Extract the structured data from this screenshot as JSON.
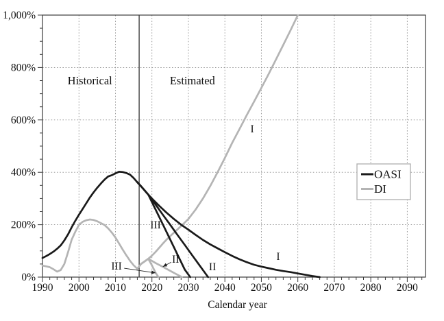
{
  "figure": {
    "region_labels": {
      "historical": "Historical",
      "estimated": "Estimated"
    },
    "x_axis_title": "Calendar year",
    "legend": {
      "position": "right-middle",
      "items": [
        {
          "label": "OASI",
          "color": "#1a1a1a"
        },
        {
          "label": "DI",
          "color": "#b4b4b4"
        }
      ]
    }
  },
  "colors": {
    "oasi": "#1a1a1a",
    "di": "#b4b4b4",
    "grid": "#8f8f8f",
    "axis": "#3a3a3a",
    "divider": "#222222",
    "background": "#ffffff"
  },
  "chart_data": {
    "type": "line",
    "title": "",
    "xlabel": "Calendar year",
    "ylabel": "",
    "x_range": [
      1990,
      2095
    ],
    "y_range_percent": [
      0,
      1000
    ],
    "x_ticks_major": [
      1990,
      2000,
      2010,
      2020,
      2030,
      2040,
      2050,
      2060,
      2070,
      2080,
      2090
    ],
    "x_tick_minor_step_years": 2,
    "y_ticks_major_percent": [
      0,
      200,
      400,
      600,
      800,
      1000
    ],
    "y_tick_labels": [
      "0%",
      "200%",
      "400%",
      "600%",
      "800%",
      "1,000%"
    ],
    "y_tick_minor_step_percent": 50,
    "grid": "dotted",
    "legend_position": "right-middle",
    "historical_estimated_divider_year": 2016.5,
    "series": [
      {
        "name": "DI historical",
        "group": "DI",
        "color": "#b4b4b4",
        "points": [
          [
            1990,
            44
          ],
          [
            1991,
            41
          ],
          [
            1992,
            38
          ],
          [
            1993,
            30
          ],
          [
            1994,
            21
          ],
          [
            1995,
            27
          ],
          [
            1996,
            50
          ],
          [
            1997,
            95
          ],
          [
            1998,
            143
          ],
          [
            1999,
            173
          ],
          [
            2000,
            199
          ],
          [
            2001,
            211
          ],
          [
            2002,
            217
          ],
          [
            2003,
            220
          ],
          [
            2004,
            218
          ],
          [
            2005,
            213
          ],
          [
            2006,
            206
          ],
          [
            2007,
            199
          ],
          [
            2008,
            186
          ],
          [
            2009,
            170
          ],
          [
            2010,
            151
          ],
          [
            2011,
            128
          ],
          [
            2012,
            105
          ],
          [
            2013,
            83
          ],
          [
            2014,
            62
          ],
          [
            2015,
            45
          ],
          [
            2016,
            32
          ]
        ]
      },
      {
        "name": "DI alternative I",
        "group": "DI",
        "color": "#b4b4b4",
        "points": [
          [
            2016,
            32
          ],
          [
            2017,
            50
          ],
          [
            2018,
            60
          ],
          [
            2019,
            70
          ],
          [
            2020,
            82
          ],
          [
            2021,
            96
          ],
          [
            2022,
            112
          ],
          [
            2023,
            128
          ],
          [
            2024,
            143
          ],
          [
            2025,
            156
          ],
          [
            2026,
            169
          ],
          [
            2027,
            182
          ],
          [
            2028,
            195
          ],
          [
            2029,
            208
          ],
          [
            2030,
            222
          ],
          [
            2031,
            240
          ],
          [
            2032,
            258
          ],
          [
            2034,
            300
          ],
          [
            2036,
            348
          ],
          [
            2038,
            400
          ],
          [
            2040,
            455
          ],
          [
            2042,
            512
          ],
          [
            2044,
            565
          ],
          [
            2046,
            618
          ],
          [
            2048,
            670
          ],
          [
            2050,
            722
          ],
          [
            2052,
            775
          ],
          [
            2054,
            830
          ],
          [
            2056,
            886
          ],
          [
            2058,
            942
          ],
          [
            2060,
            1000
          ]
        ]
      },
      {
        "name": "DI alternative II",
        "group": "DI",
        "color": "#b4b4b4",
        "points": [
          [
            2016,
            32
          ],
          [
            2017,
            50
          ],
          [
            2018,
            60
          ],
          [
            2019,
            70
          ],
          [
            2021,
            54
          ],
          [
            2023,
            39
          ],
          [
            2025,
            24
          ],
          [
            2027,
            9
          ],
          [
            2028.2,
            0
          ]
        ]
      },
      {
        "name": "DI alternative III",
        "group": "DI",
        "color": "#b4b4b4",
        "points": [
          [
            2016,
            32
          ],
          [
            2017,
            50
          ],
          [
            2018,
            60
          ],
          [
            2019,
            70
          ],
          [
            2020,
            45
          ],
          [
            2021,
            17
          ],
          [
            2021.8,
            0
          ]
        ]
      },
      {
        "name": "OASI historical",
        "group": "OASI",
        "color": "#1a1a1a",
        "points": [
          [
            1990,
            73
          ],
          [
            1991,
            80
          ],
          [
            1992,
            88
          ],
          [
            1993,
            97
          ],
          [
            1994,
            108
          ],
          [
            1995,
            121
          ],
          [
            1996,
            140
          ],
          [
            1997,
            163
          ],
          [
            1998,
            190
          ],
          [
            1999,
            215
          ],
          [
            2000,
            238
          ],
          [
            2001,
            260
          ],
          [
            2002,
            282
          ],
          [
            2003,
            304
          ],
          [
            2004,
            323
          ],
          [
            2005,
            341
          ],
          [
            2006,
            357
          ],
          [
            2007,
            372
          ],
          [
            2008,
            384
          ],
          [
            2009,
            389
          ],
          [
            2010,
            396
          ],
          [
            2011,
            402
          ],
          [
            2012,
            401
          ],
          [
            2013,
            397
          ],
          [
            2014,
            391
          ],
          [
            2015,
            378
          ],
          [
            2016,
            362
          ]
        ]
      },
      {
        "name": "OASI alternative I",
        "group": "OASI",
        "color": "#1a1a1a",
        "points": [
          [
            2016,
            362
          ],
          [
            2017,
            347
          ],
          [
            2018,
            331
          ],
          [
            2019,
            315
          ],
          [
            2020,
            300
          ],
          [
            2022,
            272
          ],
          [
            2024,
            246
          ],
          [
            2026,
            222
          ],
          [
            2028,
            200
          ],
          [
            2030,
            181
          ],
          [
            2032,
            161
          ],
          [
            2034,
            142
          ],
          [
            2036,
            125
          ],
          [
            2038,
            110
          ],
          [
            2040,
            95
          ],
          [
            2042,
            81
          ],
          [
            2044,
            68
          ],
          [
            2046,
            57
          ],
          [
            2048,
            47
          ],
          [
            2050,
            40
          ],
          [
            2052,
            34
          ],
          [
            2054,
            28
          ],
          [
            2056,
            23
          ],
          [
            2058,
            19
          ],
          [
            2060,
            14
          ],
          [
            2062,
            9
          ],
          [
            2064,
            4
          ],
          [
            2066,
            0
          ]
        ]
      },
      {
        "name": "OASI alternative II",
        "group": "OASI",
        "color": "#1a1a1a",
        "points": [
          [
            2016,
            362
          ],
          [
            2017,
            347
          ],
          [
            2018,
            331
          ],
          [
            2019,
            315
          ],
          [
            2021,
            277
          ],
          [
            2023,
            238
          ],
          [
            2025,
            200
          ],
          [
            2027,
            161
          ],
          [
            2029,
            123
          ],
          [
            2031,
            84
          ],
          [
            2033,
            46
          ],
          [
            2035.4,
            0
          ]
        ]
      },
      {
        "name": "OASI alternative III",
        "group": "OASI",
        "color": "#1a1a1a",
        "points": [
          [
            2016,
            362
          ],
          [
            2017,
            347
          ],
          [
            2018,
            331
          ],
          [
            2019,
            315
          ],
          [
            2021,
            258
          ],
          [
            2023,
            201
          ],
          [
            2025,
            144
          ],
          [
            2027,
            86
          ],
          [
            2029,
            29
          ],
          [
            2030.5,
            0
          ]
        ]
      }
    ],
    "annotations": [
      {
        "id": "historical-label",
        "text": "Historical",
        "year": 2003.0,
        "percent": 749,
        "kind": "region"
      },
      {
        "id": "estimated-label",
        "text": "Estimated",
        "year": 2031.1,
        "percent": 749,
        "kind": "region"
      },
      {
        "id": "di-alt1-label",
        "text": "I",
        "year": 2047.5,
        "percent": 565,
        "kind": "line"
      },
      {
        "id": "oasi-alt1-label",
        "text": "I",
        "year": 2054.6,
        "percent": 78,
        "kind": "line"
      },
      {
        "id": "oasi-alt2-label",
        "text": "II",
        "year": 2036.6,
        "percent": 39,
        "kind": "line"
      },
      {
        "id": "oasi-alt3-label",
        "text": "III",
        "year": 2021.0,
        "percent": 199,
        "kind": "line"
      },
      {
        "id": "di-alt2-label",
        "text": "II",
        "year": 2026.5,
        "percent": 68,
        "kind": "line",
        "arrow": {
          "from_year": 2025.3,
          "from_percent": 57,
          "to_year": 2023.0,
          "to_percent": 40
        }
      },
      {
        "id": "di-alt3-label",
        "text": "III",
        "year": 2010.3,
        "percent": 42,
        "kind": "line",
        "arrow": {
          "from_year": 2012.4,
          "from_percent": 34,
          "to_year": 2021.0,
          "to_percent": 16
        }
      }
    ]
  }
}
